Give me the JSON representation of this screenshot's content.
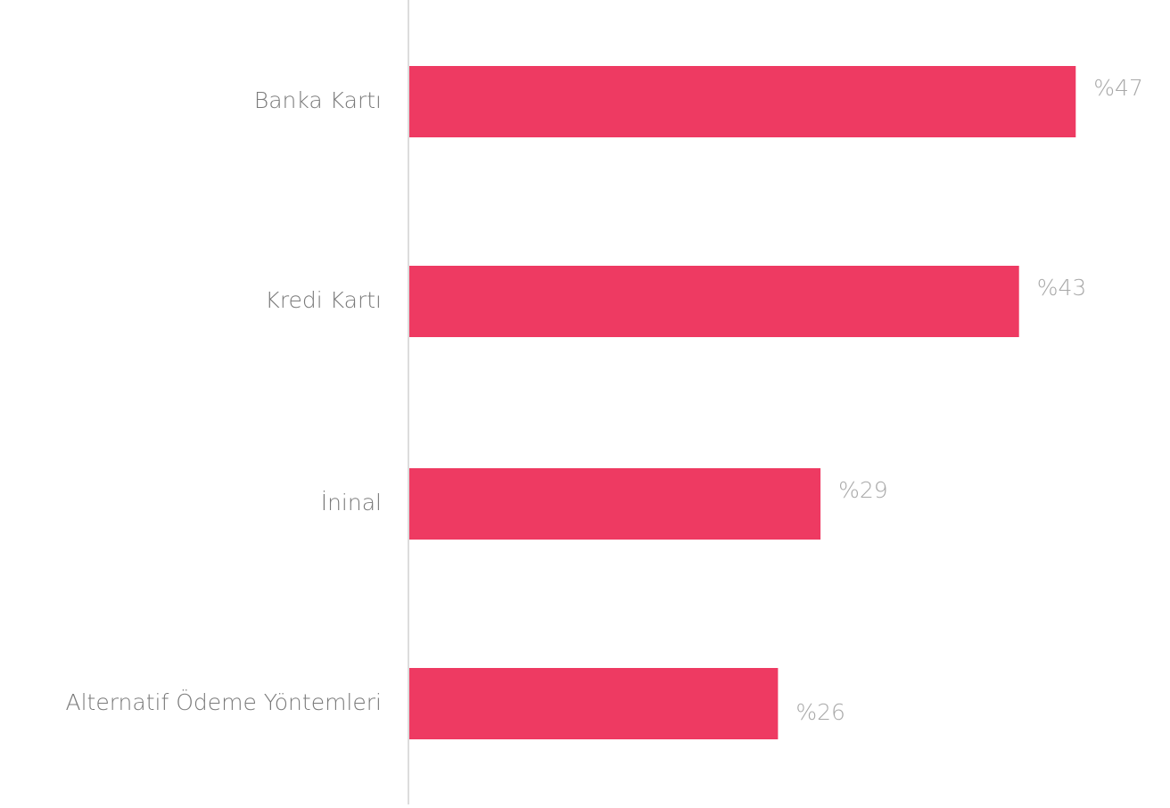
{
  "chart_data": {
    "type": "hbar",
    "categories": [
      "Banka Kartı",
      "Kredi Kartı",
      "İninal",
      "Alternatif Ödeme Yöntemleri"
    ],
    "values": [
      47,
      43,
      29,
      26
    ],
    "value_labels": [
      "%47",
      "%43",
      "%29",
      "%26"
    ],
    "color": "#ee3a62",
    "xlim": [
      0,
      50
    ]
  }
}
